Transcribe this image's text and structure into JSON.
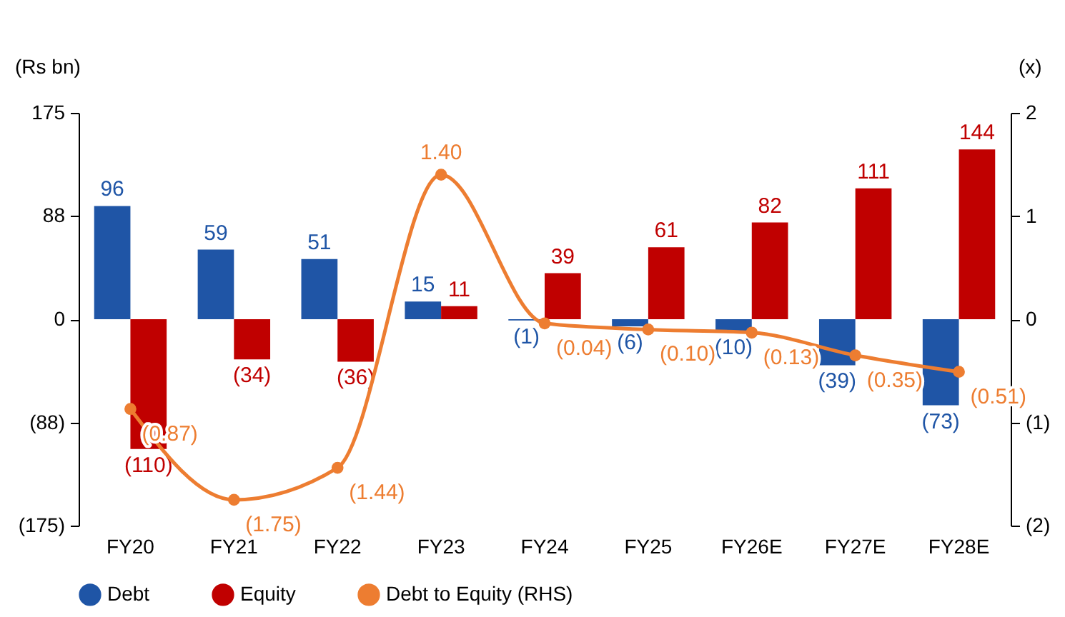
{
  "chart_data": {
    "type": "bar",
    "categories": [
      "FY20",
      "FY21",
      "FY22",
      "FY23",
      "FY24",
      "FY25",
      "FY26E",
      "FY27E",
      "FY28E"
    ],
    "ylabel": "(Rs bn)",
    "y2label": "(x)",
    "series": [
      {
        "name": "Debt",
        "color": "#1f55a6",
        "values": [
          96,
          59,
          51,
          15,
          -1,
          -6,
          -10,
          -39,
          -73
        ],
        "value_labels": [
          "96",
          "59",
          "51",
          "15",
          "(1)",
          "(6)",
          "(10)",
          "(39)",
          "(73)"
        ]
      },
      {
        "name": "Equity",
        "color": "#c00000",
        "values": [
          -110,
          -34,
          -36,
          11,
          39,
          61,
          82,
          111,
          144
        ],
        "value_labels": [
          "(110)",
          "(34)",
          "(36)",
          "11",
          "39",
          "61",
          "82",
          "111",
          "144"
        ]
      },
      {
        "name": "Debt to Equity (RHS)",
        "type": "line",
        "axis": "y2",
        "color": "#ed7d31",
        "marker": "circle",
        "values": [
          -0.87,
          -1.75,
          -1.44,
          1.4,
          -0.04,
          -0.1,
          -0.13,
          -0.35,
          -0.51
        ],
        "value_labels": [
          "(0.87)",
          "(1.75)",
          "(1.44)",
          "1.40",
          "(0.04)",
          "(0.10)",
          "(0.13)",
          "(0.35)",
          "(0.51)"
        ]
      }
    ],
    "ylim": [
      -175,
      175
    ],
    "yticks": [
      {
        "value": -175,
        "label": "(175)"
      },
      {
        "value": -88,
        "label": "(88)"
      },
      0,
      88,
      175
    ],
    "y2lim": [
      -2,
      2
    ],
    "y2ticks": [
      {
        "value": -2,
        "label": "(2)"
      },
      {
        "value": -1,
        "label": "(1)"
      },
      0,
      1,
      2
    ],
    "grid": false,
    "legend": "bottom"
  }
}
